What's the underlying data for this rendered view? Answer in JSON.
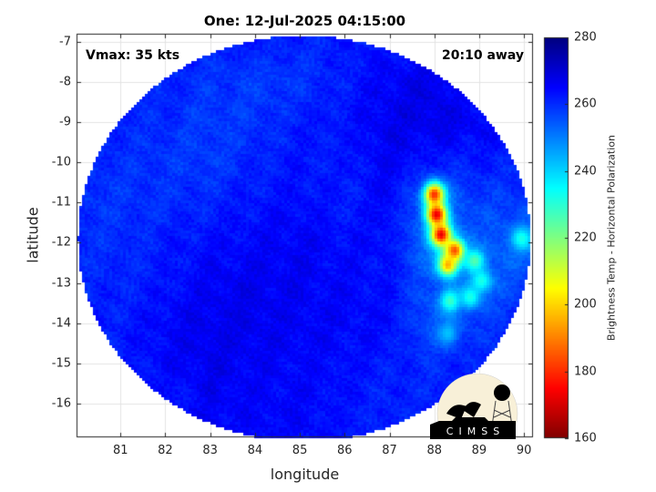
{
  "chart_data": {
    "type": "heatmap",
    "title": "One: 12-Jul-2025 04:15:00",
    "xlabel": "longitude",
    "ylabel": "latitude",
    "xlim": [
      80.02,
      90.2
    ],
    "ylim": [
      -16.84,
      -6.8
    ],
    "xticks": [
      81,
      82,
      83,
      84,
      85,
      86,
      87,
      88,
      89,
      90
    ],
    "yticks": [
      -7,
      -8,
      -9,
      -10,
      -11,
      -12,
      -13,
      -14,
      -15,
      -16
    ],
    "grid": true,
    "swath": {
      "center_lon": 85.1,
      "center_lat": -11.9,
      "radius_deg": 5.05
    },
    "colorbar": {
      "label": "Brightness Temp - Horizontal Polarization",
      "colormap": "jet-reversed",
      "clim": [
        160,
        280
      ],
      "ticks": [
        160,
        180,
        200,
        220,
        240,
        260,
        280
      ],
      "location": "right"
    },
    "grid_lon": [
      81,
      82,
      83,
      84,
      85,
      86,
      87,
      88,
      89,
      90
    ],
    "grid_lat": [
      -7,
      -8,
      -9,
      -10,
      -11,
      -12,
      -13,
      -14,
      -15,
      -16
    ],
    "tb_grid": [
      [
        null,
        null,
        null,
        262,
        261,
        262,
        263,
        null,
        null,
        null
      ],
      [
        null,
        261,
        259,
        258,
        259,
        262,
        266,
        268,
        null,
        null
      ],
      [
        261,
        260,
        258,
        259,
        262,
        263,
        267,
        268,
        266,
        null
      ],
      [
        260,
        259,
        258,
        261,
        263,
        262,
        266,
        262,
        262,
        262
      ],
      [
        259,
        260,
        261,
        263,
        264,
        262,
        265,
        250,
        258,
        258
      ],
      [
        260,
        262,
        264,
        265,
        266,
        264,
        264,
        248,
        255,
        252
      ],
      [
        261,
        263,
        266,
        267,
        266,
        265,
        263,
        255,
        252,
        258
      ],
      [
        262,
        265,
        267,
        267,
        266,
        265,
        264,
        254,
        258,
        262
      ],
      [
        null,
        265,
        267,
        266,
        265,
        264,
        262,
        260,
        262,
        null
      ],
      [
        null,
        null,
        266,
        265,
        265,
        263,
        261,
        null,
        null,
        null
      ]
    ],
    "cold_cores": [
      {
        "lon": 88.0,
        "lat": -10.8,
        "tb": 180
      },
      {
        "lon": 88.05,
        "lat": -11.3,
        "tb": 172
      },
      {
        "lon": 88.15,
        "lat": -11.8,
        "tb": 172
      },
      {
        "lon": 88.45,
        "lat": -12.2,
        "tb": 182
      },
      {
        "lon": 88.3,
        "lat": -12.55,
        "tb": 195
      },
      {
        "lon": 88.9,
        "lat": -12.45,
        "tb": 225
      },
      {
        "lon": 89.05,
        "lat": -12.95,
        "tb": 232
      },
      {
        "lon": 88.35,
        "lat": -13.45,
        "tb": 228
      },
      {
        "lon": 88.8,
        "lat": -13.35,
        "tb": 232
      },
      {
        "lon": 88.3,
        "lat": -14.25,
        "tb": 242
      },
      {
        "lon": 89.95,
        "lat": -11.9,
        "tb": 232
      }
    ]
  },
  "annotations": {
    "vmax": "Vmax: 35 kts",
    "away": "20:10 away"
  },
  "logo": {
    "text": "CIMSS"
  }
}
